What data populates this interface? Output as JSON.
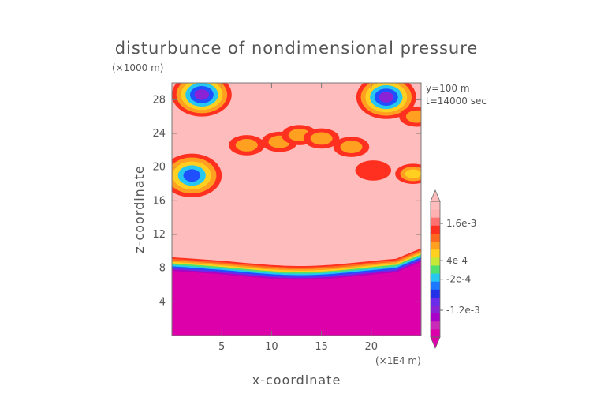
{
  "chart_data": {
    "type": "heatmap",
    "title": "disturbunce of nondimensional pressure",
    "z_unit": "(×1000 m)",
    "x_unit": "(×1E4 m)",
    "xlabel": "x-coordinate",
    "ylabel": "z-coordinate",
    "annotations": [
      "y=100 m",
      "t=14000 sec"
    ],
    "xlim": [
      0,
      25
    ],
    "ylim": [
      0,
      30
    ],
    "x_ticks": [
      5,
      10,
      15,
      20
    ],
    "y_ticks": [
      4,
      8,
      12,
      16,
      20,
      24,
      28
    ],
    "colorbar": {
      "labels": [
        {
          "text": "1.6e-3",
          "value": 0.0016
        },
        {
          "text": "4e-4",
          "value": 0.0004
        },
        {
          "text": "-2e-4",
          "value": -0.0002
        },
        {
          "text": "-1.2e-3",
          "value": -0.0012
        }
      ],
      "colors": [
        "#dd00aa",
        "#c92ab8",
        "#a800c8",
        "#8a22d6",
        "#6a2ce8",
        "#2230e8",
        "#1e78ff",
        "#26c8f0",
        "#50e070",
        "#c8e838",
        "#ffd020",
        "#ffa020",
        "#ff6820",
        "#ff3020",
        "#ff7070",
        "#ffb0b0",
        "#ffbcbc"
      ]
    },
    "background_color": "#ffbcbc",
    "boundary_layer": {
      "z_top_center": 7.4,
      "z_top_edges": 8.3,
      "color_bands": [
        "#dd00aa",
        "#b000c0",
        "#6a2ce8",
        "#1e50ff",
        "#26c8f0",
        "#50e070",
        "#ffd020",
        "#ffa020",
        "#ff6820",
        "#ff3020"
      ]
    },
    "features": [
      {
        "x": 3.0,
        "z": 28.6,
        "kind": "low",
        "colors": [
          "#ff3020",
          "#ffa020",
          "#ffd020",
          "#26c8f0",
          "#1e50ff",
          "#8a22d6"
        ]
      },
      {
        "x": 21.5,
        "z": 28.3,
        "kind": "low",
        "colors": [
          "#ff3020",
          "#ffa020",
          "#ffd020",
          "#26c8f0",
          "#1e50ff",
          "#8a22d6"
        ]
      },
      {
        "x": 2.0,
        "z": 19.0,
        "kind": "low",
        "colors": [
          "#ff3020",
          "#ffa020",
          "#ffd020",
          "#26c8f0",
          "#1e50ff"
        ]
      },
      {
        "x": 24.6,
        "z": 26.0,
        "kind": "high",
        "colors": [
          "#ff3020",
          "#ffa020"
        ]
      },
      {
        "x": 24.2,
        "z": 19.2,
        "kind": "high",
        "colors": [
          "#ff3020",
          "#ffa020",
          "#ffd020"
        ]
      },
      {
        "x": 7.5,
        "z": 22.6,
        "kind": "high",
        "colors": [
          "#ff3020",
          "#ffa020"
        ]
      },
      {
        "x": 10.8,
        "z": 23.0,
        "kind": "high",
        "colors": [
          "#ff3020",
          "#ffa020"
        ]
      },
      {
        "x": 12.8,
        "z": 23.8,
        "kind": "high",
        "colors": [
          "#ff3020",
          "#ffa020"
        ]
      },
      {
        "x": 15.0,
        "z": 23.4,
        "kind": "high",
        "colors": [
          "#ff3020",
          "#ffa020"
        ]
      },
      {
        "x": 18.0,
        "z": 22.4,
        "kind": "high",
        "colors": [
          "#ff3020",
          "#ffa020"
        ]
      },
      {
        "x": 20.2,
        "z": 19.6,
        "kind": "high",
        "colors": [
          "#ff3020"
        ]
      }
    ]
  }
}
